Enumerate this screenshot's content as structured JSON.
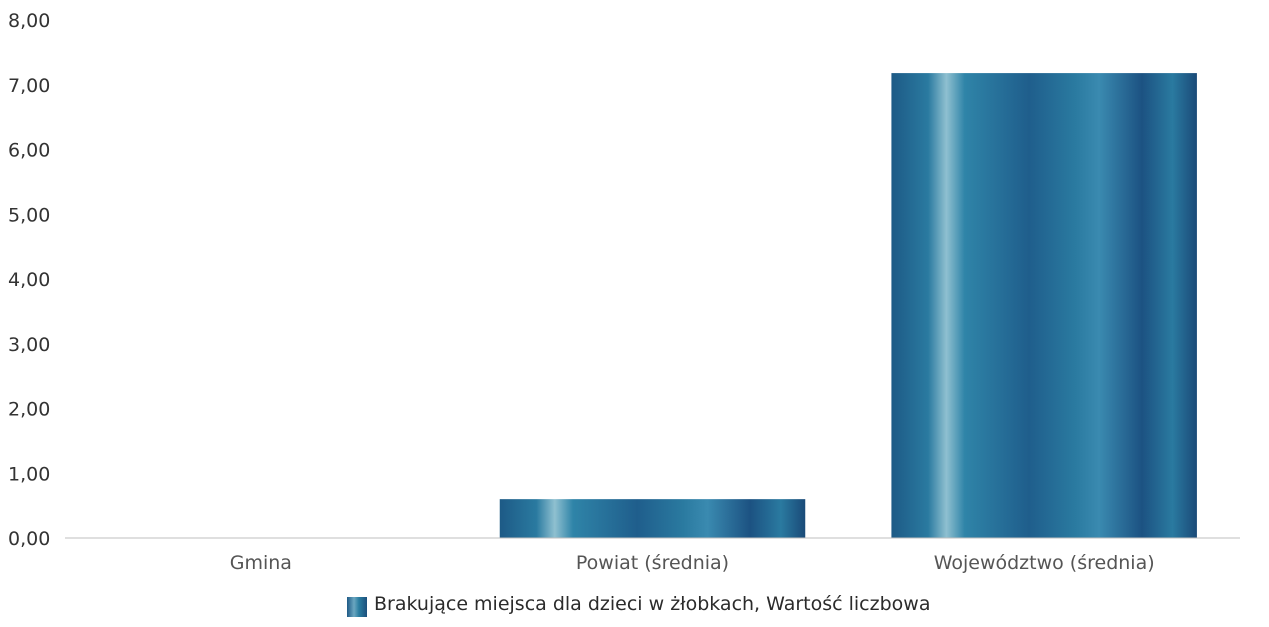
{
  "chart_data": {
    "type": "bar",
    "categories": [
      "Gmina",
      "Powiat (średnia)",
      "Województwo (średnia)"
    ],
    "values": [
      0.0,
      0.6,
      7.18
    ],
    "series": [
      {
        "name": "Brakujące miejsca dla dzieci w żłobkach, Wartość liczbowa",
        "values": [
          0.0,
          0.6,
          7.18
        ]
      }
    ],
    "yticks": [
      "0,00",
      "1,00",
      "2,00",
      "3,00",
      "4,00",
      "5,00",
      "6,00",
      "7,00",
      "8,00"
    ],
    "ylim": [
      0,
      8
    ],
    "grid": false,
    "legend_position": "bottom-center",
    "colors": {
      "bar_dark": "#1d4f7c",
      "bar_mid": "#2b7aa0",
      "bar_light": "#7fb3c7",
      "axis": "#cccccc"
    }
  },
  "legend": {
    "label": "Brakujące miejsca dla dzieci w żłobkach, Wartość liczbowa"
  }
}
